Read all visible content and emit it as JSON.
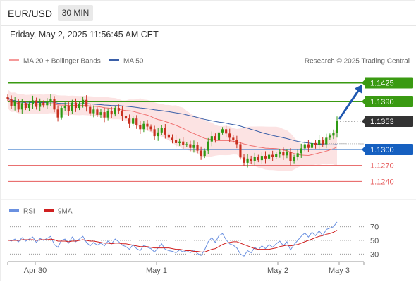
{
  "header": {
    "symbol": "EUR/USD",
    "timeframe": "30 MIN",
    "datetime": "Friday, May 2, 2025 11:56:45 AM CET"
  },
  "legend": {
    "ma20": "MA 20 + Bollinger Bands",
    "ma50": "MA 50",
    "source": "Research © 2025 Trading Central"
  },
  "rsi_legend": {
    "rsi": "RSI",
    "ma": "9MA"
  },
  "colors": {
    "resistance": "#3a9a12",
    "support": "#e65c5c",
    "pivot": "#1660c0",
    "current_bg": "#333333",
    "candle_up": "#2e9a14",
    "candle_down": "#c83020",
    "ma20": "#f07070",
    "ma50": "#3a5fa8",
    "bollinger_fill": "#fbd9d9",
    "rsi_line": "#6a90e0",
    "rsi_ma": "#d02020",
    "arrow": "#1f57b0"
  },
  "chart_data": [
    {
      "type": "line",
      "subtype": "candlestick",
      "ylim": [
        1.121,
        1.148
      ],
      "x_ticks": [
        "Apr 30",
        "May 1",
        "May 2",
        "May 3"
      ],
      "levels": [
        {
          "label": "1.1425",
          "value": 1.1425,
          "kind": "resistance"
        },
        {
          "label": "1.1390",
          "value": 1.139,
          "kind": "resistance"
        },
        {
          "label": "1.1353",
          "value": 1.1353,
          "kind": "current"
        },
        {
          "label": "1.1300",
          "value": 1.13,
          "kind": "pivot"
        },
        {
          "label": "1.1270",
          "value": 1.127,
          "kind": "support"
        },
        {
          "label": "1.1240",
          "value": 1.124,
          "kind": "support"
        }
      ],
      "forecast": {
        "from": 1.1353,
        "to": 1.1425
      },
      "closes": [
        1.1395,
        1.1382,
        1.139,
        1.1375,
        1.1387,
        1.1378,
        1.1385,
        1.1392,
        1.138,
        1.1388,
        1.1383,
        1.139,
        1.1395,
        1.1375,
        1.136,
        1.1378,
        1.1382,
        1.1372,
        1.1388,
        1.1378,
        1.1385,
        1.1393,
        1.138,
        1.1368,
        1.1375,
        1.1365,
        1.137,
        1.136,
        1.1372,
        1.1366,
        1.1378,
        1.1373,
        1.1363,
        1.1358,
        1.1348,
        1.1358,
        1.1345,
        1.1338,
        1.1348,
        1.1343,
        1.1338,
        1.1325,
        1.1332,
        1.134,
        1.1328,
        1.1322,
        1.1318,
        1.1312,
        1.1315,
        1.1308,
        1.131,
        1.1303,
        1.1308,
        1.1298,
        1.1288,
        1.1298,
        1.1315,
        1.1325,
        1.1318,
        1.1332,
        1.1338,
        1.133,
        1.1322,
        1.1318,
        1.131,
        1.1285,
        1.1275,
        1.1283,
        1.1278,
        1.1286,
        1.128,
        1.1288,
        1.1283,
        1.129,
        1.1286,
        1.1291,
        1.1295,
        1.1289,
        1.1295,
        1.1278,
        1.1286,
        1.1293,
        1.1302,
        1.131,
        1.1303,
        1.1312,
        1.1308,
        1.1318,
        1.131,
        1.1322,
        1.1326,
        1.1331,
        1.1353
      ]
    },
    {
      "type": "line",
      "title": "RSI",
      "ylim": [
        20,
        80
      ],
      "y_ticks": [
        70,
        50,
        30
      ],
      "rsi": [
        51,
        49,
        52,
        48,
        54,
        49,
        52,
        55,
        47,
        53,
        50,
        53,
        56,
        44,
        40,
        50,
        52,
        46,
        55,
        48,
        52,
        56,
        47,
        42,
        47,
        43,
        46,
        42,
        49,
        45,
        52,
        48,
        43,
        41,
        37,
        44,
        38,
        35,
        43,
        40,
        38,
        33,
        39,
        45,
        37,
        35,
        34,
        32,
        36,
        33,
        35,
        32,
        36,
        31,
        28,
        36,
        48,
        54,
        47,
        57,
        60,
        51,
        45,
        43,
        39,
        30,
        27,
        35,
        32,
        40,
        36,
        42,
        38,
        44,
        40,
        45,
        49,
        42,
        48,
        36,
        44,
        50,
        56,
        61,
        55,
        62,
        57,
        64,
        57,
        66,
        68,
        70,
        77
      ],
      "rsi_ma": [
        50,
        50,
        50,
        50,
        51,
        51,
        51,
        51,
        50,
        51,
        51,
        51,
        52,
        51,
        49,
        49,
        49,
        48,
        49,
        49,
        50,
        51,
        50,
        49,
        49,
        48,
        47,
        46,
        46,
        45,
        46,
        46,
        45,
        45,
        44,
        43,
        42,
        41,
        41,
        41,
        40,
        39,
        39,
        39,
        39,
        39,
        38,
        37,
        37,
        36,
        35,
        35,
        34,
        34,
        33,
        33,
        35,
        37,
        38,
        41,
        44,
        46,
        47,
        48,
        48,
        46,
        44,
        42,
        40,
        38,
        37,
        37,
        37,
        37,
        38,
        39,
        41,
        42,
        43,
        42,
        43,
        44,
        46,
        48,
        50,
        52,
        54,
        56,
        57,
        59,
        60,
        62,
        65
      ]
    }
  ]
}
